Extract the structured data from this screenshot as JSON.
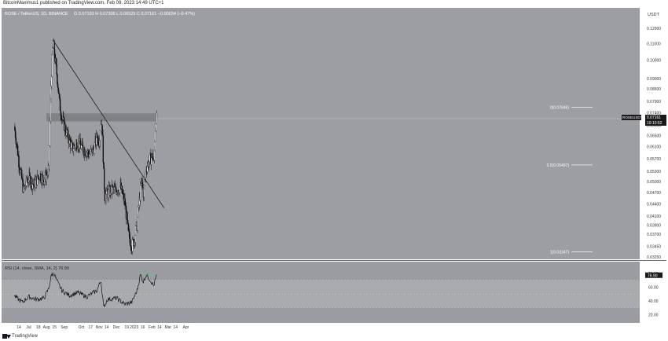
{
  "header": {
    "text": "BitcoinMaximus1 published on TradingView.com, Feb 09, 2023 14:49 UTC+1"
  },
  "footer": {
    "brand": "TradingView",
    "logo_icon": "tradingview-logo-icon"
  },
  "colors": {
    "background": "#9c9ea3",
    "panel": "#9a9ca1",
    "up": "#ffffff",
    "down": "#101010",
    "trendline": "#1c1c1c",
    "resistance_zone": "#7a7c80",
    "rsi_line": "#141414",
    "rsi_band": "#a8aaae",
    "divergence": "#56d47a",
    "price_label_bg": "#1a1a1a",
    "price_label_fg": "#ffffff"
  },
  "chart_data": [
    {
      "type": "candlestick",
      "title": "ROSE / TetherUS, 1D, BINANCE",
      "ohlc_header": [
        "O",
        "0.07193",
        "H",
        "0.07306",
        "L",
        "0.06525",
        "C",
        "0.07161",
        "−0.00034 (−0.47%)"
      ],
      "x_tick_labels": [
        "14",
        "Jul",
        "18",
        "Aug",
        "15",
        "Sep",
        "Oct",
        "17",
        "Nov",
        "14",
        "Dec",
        "19",
        "2023",
        "16",
        "Feb",
        "14",
        "Mar",
        "14",
        "Apr"
      ],
      "price_axis_unit": "USDT",
      "price_ticks": [
        "0.12000",
        "0.11000",
        "0.10000",
        "0.09000",
        "0.08500",
        "0.07900",
        "0.07400",
        "0.06900",
        "0.06500",
        "0.06100",
        "0.05700",
        "0.05300",
        "0.05000",
        "0.04700",
        "0.04400",
        "0.04100",
        "0.03900",
        "0.03700",
        "0.03450",
        "0.03250"
      ],
      "current_price": {
        "symbol": "ROSEUSDT",
        "price": "0.07161",
        "countdown": "10:10:52"
      },
      "fib_levels": [
        {
          "label": "0(0.07646)",
          "value": 0.07646
        },
        {
          "label": "0.5(0.05497)",
          "value": 0.05497
        },
        {
          "label": "1(0.03347)",
          "value": 0.03347
        }
      ],
      "resistance_zone": [
        0.0705,
        0.0738
      ],
      "close_path": [
        [
          "2022-06-06",
          0.0685
        ],
        [
          "2022-06-14",
          0.056
        ],
        [
          "2022-06-22",
          0.0475
        ],
        [
          "2022-07-01",
          0.0512
        ],
        [
          "2022-07-10",
          0.049
        ],
        [
          "2022-07-20",
          0.052
        ],
        [
          "2022-07-28",
          0.0505
        ],
        [
          "2022-08-05",
          0.053
        ],
        [
          "2022-08-08",
          0.079
        ],
        [
          "2022-08-10",
          0.094
        ],
        [
          "2022-08-12",
          0.106
        ],
        [
          "2022-08-14",
          0.108
        ],
        [
          "2022-08-16",
          0.101
        ],
        [
          "2022-08-20",
          0.09
        ],
        [
          "2022-08-24",
          0.078
        ],
        [
          "2022-08-28",
          0.072
        ],
        [
          "2022-09-05",
          0.066
        ],
        [
          "2022-09-15",
          0.0605
        ],
        [
          "2022-09-25",
          0.0625
        ],
        [
          "2022-10-05",
          0.06
        ],
        [
          "2022-10-15",
          0.0585
        ],
        [
          "2022-10-22",
          0.06
        ],
        [
          "2022-10-28",
          0.0645
        ],
        [
          "2022-11-01",
          0.063
        ],
        [
          "2022-11-04",
          0.0705
        ],
        [
          "2022-11-06",
          0.069
        ],
        [
          "2022-11-09",
          0.052
        ],
        [
          "2022-11-11",
          0.046
        ],
        [
          "2022-11-20",
          0.0475
        ],
        [
          "2022-12-01",
          0.0478
        ],
        [
          "2022-12-08",
          0.0485
        ],
        [
          "2022-12-16",
          0.044
        ],
        [
          "2022-12-22",
          0.037
        ],
        [
          "2022-12-28",
          0.0345
        ],
        [
          "2023-01-01",
          0.036
        ],
        [
          "2023-01-06",
          0.039
        ],
        [
          "2023-01-10",
          0.045
        ],
        [
          "2023-01-14",
          0.05
        ],
        [
          "2023-01-17",
          0.047
        ],
        [
          "2023-01-22",
          0.054
        ],
        [
          "2023-01-28",
          0.0565
        ],
        [
          "2023-02-02",
          0.058
        ],
        [
          "2023-02-04",
          0.0555
        ],
        [
          "2023-02-06",
          0.064
        ],
        [
          "2023-02-08",
          0.072
        ],
        [
          "2023-02-09",
          0.0716
        ]
      ],
      "trendline": {
        "start": [
          "2022-08-12",
          0.1125
        ],
        "end": [
          "2023-02-22",
          0.043
        ]
      }
    },
    {
      "type": "line",
      "title": "RSI (14, close, SMA, 14, 2)",
      "value_label": "76.90",
      "y_ticks": [
        "80.00",
        "60.00",
        "40.00",
        "20.00"
      ],
      "ylim": [
        10,
        95
      ],
      "band": [
        30,
        70
      ],
      "rsi_path": [
        [
          "2022-06-06",
          47
        ],
        [
          "2022-06-20",
          38
        ],
        [
          "2022-07-01",
          46
        ],
        [
          "2022-07-15",
          42
        ],
        [
          "2022-07-28",
          44
        ],
        [
          "2022-08-05",
          58
        ],
        [
          "2022-08-10",
          78
        ],
        [
          "2022-08-14",
          80
        ],
        [
          "2022-08-20",
          68
        ],
        [
          "2022-08-28",
          55
        ],
        [
          "2022-09-10",
          48
        ],
        [
          "2022-09-25",
          52
        ],
        [
          "2022-10-10",
          46
        ],
        [
          "2022-10-28",
          55
        ],
        [
          "2022-11-04",
          70
        ],
        [
          "2022-11-09",
          30
        ],
        [
          "2022-11-15",
          42
        ],
        [
          "2022-12-01",
          44
        ],
        [
          "2022-12-16",
          35
        ],
        [
          "2022-12-28",
          38
        ],
        [
          "2023-01-06",
          55
        ],
        [
          "2023-01-12",
          78
        ],
        [
          "2023-01-17",
          68
        ],
        [
          "2023-01-22",
          78
        ],
        [
          "2023-01-28",
          72
        ],
        [
          "2023-02-04",
          62
        ],
        [
          "2023-02-06",
          68
        ],
        [
          "2023-02-09",
          77
        ]
      ],
      "divergence": {
        "start": [
          "2023-01-14",
          82
        ],
        "end": [
          "2023-02-06",
          75
        ]
      }
    }
  ]
}
